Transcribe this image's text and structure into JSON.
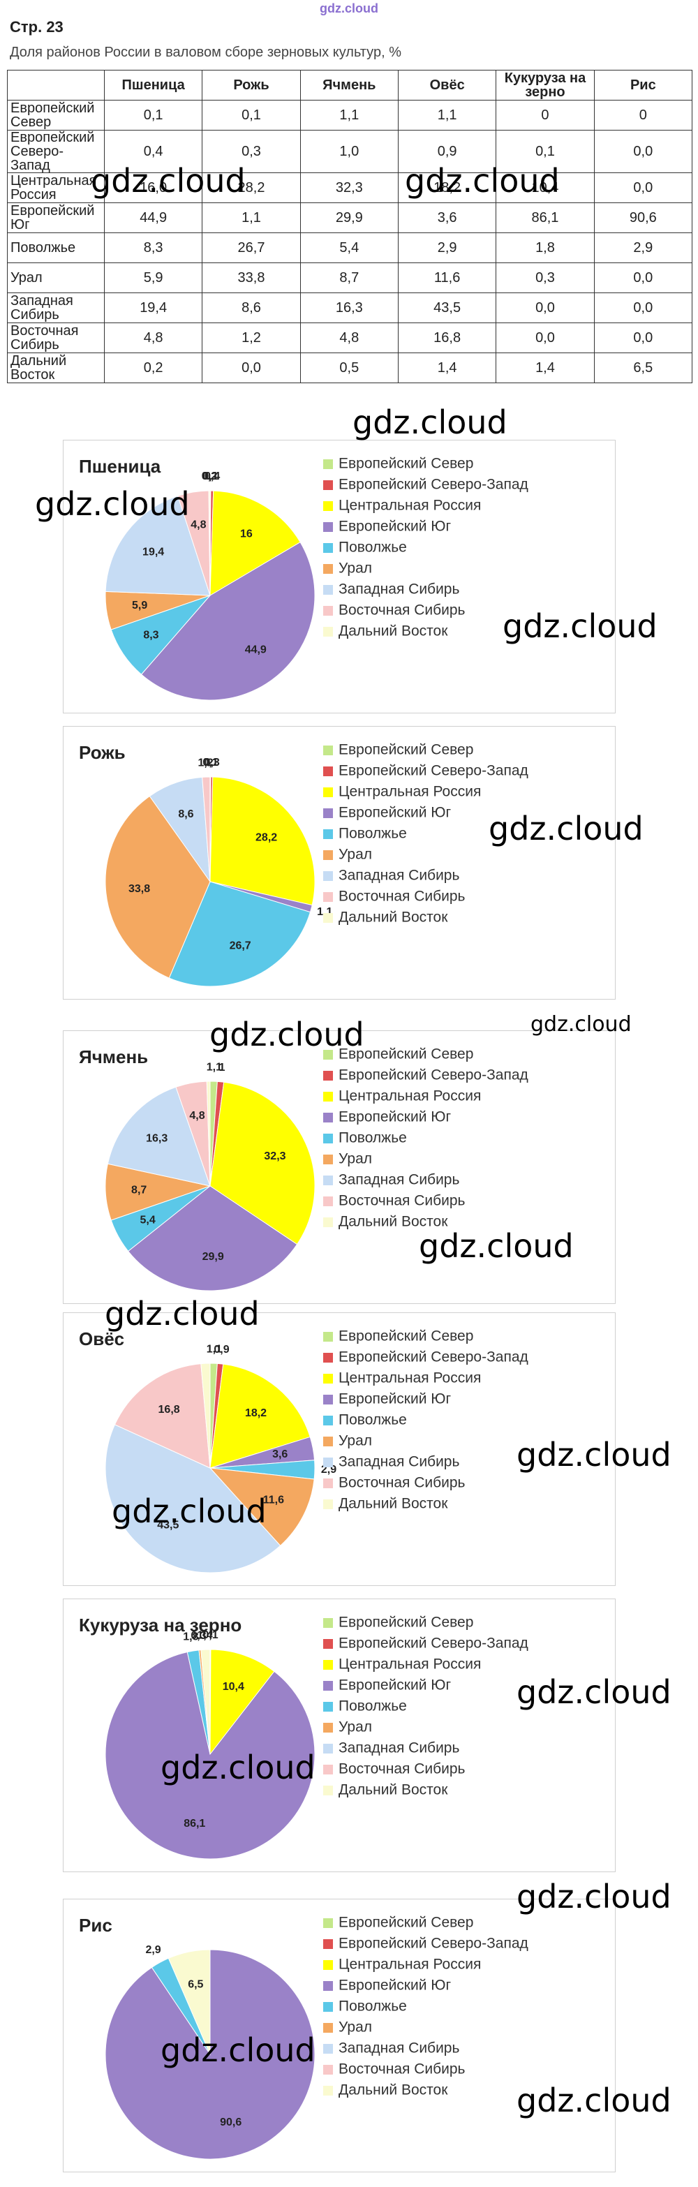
{
  "header": {
    "logo": "gdz.cloud",
    "page": "Стр. 23",
    "subtitle": "Доля районов России в валовом сборе зерновых культур, %"
  },
  "watermark": "gdz.cloud",
  "table": {
    "columns": [
      "Пшеница",
      "Рожь",
      "Ячмень",
      "Овёс",
      "Кукуруза на зерно",
      "Рис"
    ],
    "rows": [
      {
        "region": "Европейский Север",
        "cells": [
          "0,1",
          "0,1",
          "1,1",
          "1,1",
          "0",
          "0"
        ]
      },
      {
        "region": "Европейский Северо-Запад",
        "cells": [
          "0,4",
          "0,3",
          "1,0",
          "0,9",
          "0,1",
          "0,0"
        ]
      },
      {
        "region": "Центральная Россия",
        "cells": [
          "16,0",
          "28,2",
          "32,3",
          "18,2",
          "10,4",
          "0,0"
        ]
      },
      {
        "region": "Европейский Юг",
        "cells": [
          "44,9",
          "1,1",
          "29,9",
          "3,6",
          "86,1",
          "90,6"
        ]
      },
      {
        "region": "Поволжье",
        "cells": [
          "8,3",
          "26,7",
          "5,4",
          "2,9",
          "1,8",
          "2,9"
        ]
      },
      {
        "region": "Урал",
        "cells": [
          "5,9",
          "33,8",
          "8,7",
          "11,6",
          "0,3",
          "0,0"
        ]
      },
      {
        "region": "Западная Сибирь",
        "cells": [
          "19,4",
          "8,6",
          "16,3",
          "43,5",
          "0,0",
          "0,0"
        ]
      },
      {
        "region": "Восточная Сибирь",
        "cells": [
          "4,8",
          "1,2",
          "4,8",
          "16,8",
          "0,0",
          "0,0"
        ]
      },
      {
        "region": "Дальний Восток",
        "cells": [
          "0,2",
          "0,0",
          "0,5",
          "1,4",
          "1,4",
          "6,5"
        ]
      }
    ]
  },
  "chart_data": [
    {
      "type": "pie",
      "title": "Пшеница",
      "categories": [
        "Европейский Север",
        "Европейский Северо-Запад",
        "Центральная Россия",
        "Европейский Юг",
        "Поволжье",
        "Урал",
        "Западная Сибирь",
        "Восточная Сибирь",
        "Дальний Восток"
      ],
      "colors": [
        "#c4e88a",
        "#e05050",
        "#ffff00",
        "#9a82c8",
        "#5bc8e8",
        "#f4a860",
        "#c6dcf4",
        "#f8c8c8",
        "#fafad0"
      ],
      "values": [
        0.1,
        0.4,
        16,
        44.9,
        8.3,
        5.9,
        19.4,
        4.8,
        0.2
      ],
      "value_labels": [
        "0,1",
        "0,4",
        "16",
        "44,9",
        "8,3",
        "5,9",
        "19,4",
        "4,8",
        "0,2"
      ]
    },
    {
      "type": "pie",
      "title": "Рожь",
      "categories": [
        "Европейский Север",
        "Европейский Северо-Запад",
        "Центральная Россия",
        "Европейский Юг",
        "Поволжье",
        "Урал",
        "Западная Сибирь",
        "Восточная Сибирь",
        "Дальний Восток"
      ],
      "colors": [
        "#c4e88a",
        "#e05050",
        "#ffff00",
        "#9a82c8",
        "#5bc8e8",
        "#f4a860",
        "#c6dcf4",
        "#f8c8c8",
        "#fafad0"
      ],
      "values": [
        0.1,
        0.3,
        28.2,
        1.1,
        26.7,
        33.8,
        8.6,
        1.2,
        0
      ],
      "value_labels": [
        "0,1",
        "0,3",
        "28,2",
        "1,1",
        "26,7",
        "33,8",
        "8,6",
        "1,2",
        null
      ]
    },
    {
      "type": "pie",
      "title": "Ячмень",
      "categories": [
        "Европейский Север",
        "Европейский Северо-Запад",
        "Центральная Россия",
        "Европейский Юг",
        "Поволжье",
        "Урал",
        "Западная Сибирь",
        "Восточная Сибирь",
        "Дальний Восток"
      ],
      "colors": [
        "#c4e88a",
        "#e05050",
        "#ffff00",
        "#9a82c8",
        "#5bc8e8",
        "#f4a860",
        "#c6dcf4",
        "#f8c8c8",
        "#fafad0"
      ],
      "values": [
        1.1,
        1,
        32.3,
        29.9,
        5.4,
        8.7,
        16.3,
        4.8,
        0.5
      ],
      "value_labels": [
        "1,1",
        "1",
        "32,3",
        "29,9",
        "5,4",
        "8,7",
        "16,3",
        "4,8",
        null
      ]
    },
    {
      "type": "pie",
      "title": "Овёс",
      "categories": [
        "Европейский Север",
        "Европейский Северо-Запад",
        "Центральная Россия",
        "Европейский Юг",
        "Поволжье",
        "Урал",
        "Западная Сибирь",
        "Восточная Сибирь",
        "Дальний Восток"
      ],
      "colors": [
        "#c4e88a",
        "#e05050",
        "#ffff00",
        "#9a82c8",
        "#5bc8e8",
        "#f4a860",
        "#c6dcf4",
        "#f8c8c8",
        "#fafad0"
      ],
      "values": [
        1.1,
        0.9,
        18.2,
        3.6,
        2.9,
        11.6,
        43.5,
        16.8,
        1.4
      ],
      "value_labels": [
        "1,1",
        "0,9",
        "18,2",
        "3,6",
        "2,9",
        "11,6",
        "43,5",
        "16,8",
        null
      ]
    },
    {
      "type": "pie",
      "title": "Кукуруза на зерно",
      "categories": [
        "Европейский Север",
        "Европейский Северо-Запад",
        "Центральная Россия",
        "Европейский Юг",
        "Поволжье",
        "Урал",
        "Западная Сибирь",
        "Восточная Сибирь",
        "Дальний Восток"
      ],
      "colors": [
        "#c4e88a",
        "#e05050",
        "#ffff00",
        "#9a82c8",
        "#5bc8e8",
        "#f4a860",
        "#c6dcf4",
        "#f8c8c8",
        "#fafad0"
      ],
      "values": [
        0,
        0.1,
        10.4,
        86.1,
        1.8,
        0.3,
        0,
        0,
        1.4
      ],
      "value_labels": [
        null,
        "0,1",
        "10,4",
        "86,1",
        "1,8",
        "0,3",
        null,
        null,
        "1,4"
      ]
    },
    {
      "type": "pie",
      "title": "Рис",
      "categories": [
        "Европейский Север",
        "Европейский Северо-Запад",
        "Центральная Россия",
        "Европейский Юг",
        "Поволжье",
        "Урал",
        "Западная Сибирь",
        "Восточная Сибирь",
        "Дальний Восток"
      ],
      "colors": [
        "#c4e88a",
        "#e05050",
        "#ffff00",
        "#9a82c8",
        "#5bc8e8",
        "#f4a860",
        "#c6dcf4",
        "#f8c8c8",
        "#fafad0"
      ],
      "values": [
        0,
        0,
        0,
        90.6,
        2.9,
        0,
        0,
        0,
        6.5
      ],
      "value_labels": [
        null,
        null,
        null,
        "90,6",
        "2,9",
        null,
        null,
        null,
        "6,5"
      ]
    }
  ]
}
